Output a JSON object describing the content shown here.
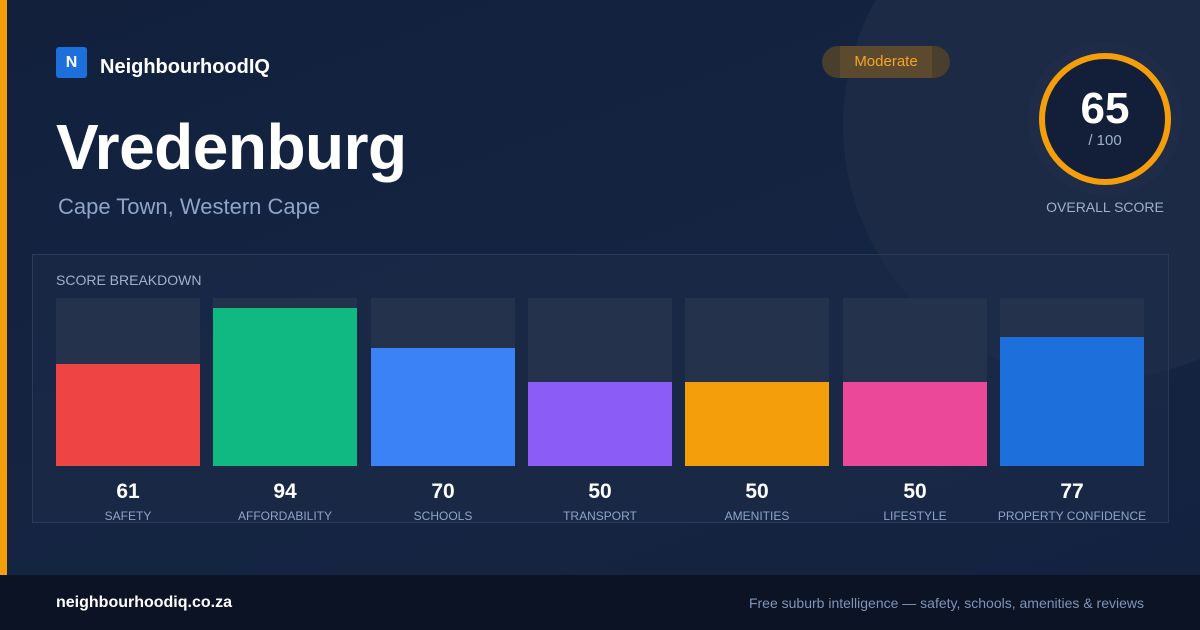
{
  "brand": {
    "logo_letter": "N",
    "name": "NeighbourhoodIQ"
  },
  "suburb": {
    "name": "Vredenburg",
    "location": "Cape Town, Western Cape"
  },
  "badge": {
    "label": "Moderate",
    "color": "#f5a524"
  },
  "overall": {
    "score": "65",
    "max": "/ 100",
    "label": "OVERALL SCORE",
    "fraction": 0.65,
    "ring_color": "#f59e0b"
  },
  "breakdown": {
    "title": "SCORE BREAKDOWN",
    "items": [
      {
        "label": "SAFETY",
        "value": "61",
        "score": 61,
        "color": "#ef4444"
      },
      {
        "label": "AFFORDABILITY",
        "value": "94",
        "score": 94,
        "color": "#10b981"
      },
      {
        "label": "SCHOOLS",
        "value": "70",
        "score": 70,
        "color": "#3b82f6"
      },
      {
        "label": "TRANSPORT",
        "value": "50",
        "score": 50,
        "color": "#8b5cf6"
      },
      {
        "label": "AMENITIES",
        "value": "50",
        "score": 50,
        "color": "#f59e0b"
      },
      {
        "label": "LIFESTYLE",
        "value": "50",
        "score": 50,
        "color": "#ec4899"
      },
      {
        "label": "PROPERTY CONFIDENCE",
        "value": "77",
        "score": 77,
        "color": "#1d6fdc"
      }
    ]
  },
  "footer": {
    "domain": "neighbourhoodiq.co.za",
    "tagline": "Free suburb intelligence — safety, schools, amenities & reviews"
  }
}
